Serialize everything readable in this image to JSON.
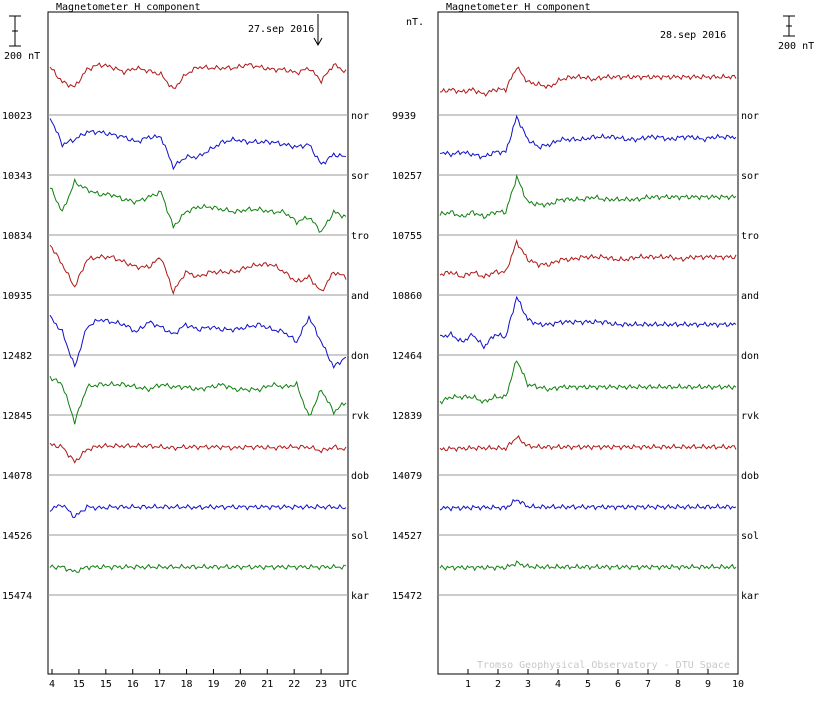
{
  "app": {
    "watermark": "Tromso Geophysical Observatory - DTU Space"
  },
  "scale": {
    "label": "200 nT",
    "unit_label": "nT."
  },
  "panels": [
    {
      "title": "Magnetometer H component",
      "date": "27.sep 2016",
      "marker_label": "",
      "x_ticks": [
        "4",
        "15",
        "15",
        "16",
        "17",
        "18",
        "19",
        "20",
        "21",
        "22",
        "23",
        "UTC"
      ],
      "baselines": [
        "10023",
        "10343",
        "10834",
        "10935",
        "12482",
        "12845",
        "14078",
        "14526",
        "15474"
      ]
    },
    {
      "title": "Magnetometer H component",
      "date": "28.sep 2016",
      "x_ticks": [
        "1",
        "2",
        "3",
        "4",
        "5",
        "6",
        "7",
        "8",
        "9",
        "10"
      ],
      "baselines": [
        "9939",
        "10257",
        "10755",
        "10860",
        "12464",
        "12839",
        "14079",
        "14527",
        "15472"
      ]
    }
  ],
  "chart_data": {
    "type": "line",
    "title": "Magnetometer H component",
    "ylabel": "nT.",
    "stations": [
      "nor",
      "sor",
      "tro",
      "and",
      "don",
      "rvk",
      "dob",
      "sol",
      "kar"
    ],
    "colors": {
      "red": "#b01818",
      "blue": "#1010c8",
      "green": "#108010"
    },
    "station_colors": [
      "red",
      "blue",
      "green",
      "red",
      "blue",
      "green",
      "red",
      "blue",
      "green"
    ],
    "series_27sep": [
      {
        "name": "nor",
        "values": [
          40,
          10,
          0,
          35,
          45,
          40,
          30,
          38,
          32,
          25,
          -5,
          25,
          40,
          38,
          38,
          38,
          45,
          40,
          35,
          35,
          28,
          38,
          12,
          45,
          30
        ]
      },
      {
        "name": "sor",
        "values": [
          60,
          5,
          15,
          30,
          30,
          25,
          20,
          10,
          20,
          20,
          -40,
          -20,
          -20,
          -5,
          10,
          15,
          10,
          10,
          10,
          5,
          0,
          5,
          -35,
          -15,
          -20
        ]
      },
      {
        "name": "tro",
        "values": [
          40,
          -10,
          50,
          35,
          25,
          25,
          15,
          10,
          20,
          30,
          -40,
          -10,
          0,
          0,
          -5,
          -10,
          -5,
          -5,
          -10,
          -10,
          -30,
          -20,
          -50,
          -10,
          -20
        ]
      },
      {
        "name": "and",
        "values": [
          45,
          5,
          -40,
          15,
          20,
          20,
          10,
          0,
          0,
          20,
          -50,
          -10,
          -20,
          -10,
          -10,
          -10,
          0,
          5,
          5,
          -10,
          -30,
          -20,
          -50,
          -10,
          -20
        ]
      },
      {
        "name": "don",
        "values": [
          20,
          -10,
          -80,
          0,
          15,
          10,
          5,
          -10,
          10,
          0,
          -15,
          5,
          -5,
          0,
          -5,
          -5,
          0,
          5,
          -5,
          -10,
          -30,
          20,
          -30,
          -80,
          -60
        ]
      },
      {
        "name": "rvk",
        "values": [
          20,
          5,
          -70,
          0,
          5,
          5,
          5,
          0,
          -5,
          5,
          0,
          0,
          -5,
          0,
          5,
          -5,
          -5,
          -5,
          5,
          0,
          5,
          -60,
          -5,
          -50,
          -30
        ]
      },
      {
        "name": "dob",
        "values": [
          5,
          0,
          -30,
          -5,
          2,
          2,
          2,
          2,
          2,
          0,
          -2,
          0,
          0,
          0,
          0,
          -2,
          0,
          0,
          -2,
          0,
          0,
          0,
          -8,
          0,
          -5
        ]
      },
      {
        "name": "sol",
        "values": [
          -5,
          5,
          -20,
          0,
          -2,
          0,
          0,
          0,
          0,
          0,
          0,
          0,
          -1,
          0,
          0,
          0,
          0,
          0,
          0,
          0,
          0,
          0,
          0,
          0,
          -2
        ]
      },
      {
        "name": "kar",
        "values": [
          0,
          0,
          -10,
          0,
          0,
          0,
          0,
          0,
          0,
          0,
          0,
          0,
          0,
          0,
          0,
          0,
          0,
          0,
          0,
          0,
          0,
          0,
          0,
          0,
          0
        ]
      }
    ],
    "series_28sep": [
      {
        "name": "nor",
        "values": [
          -10,
          -5,
          -10,
          -5,
          -15,
          -5,
          -5,
          40,
          10,
          5,
          0,
          15,
          20,
          20,
          15,
          20,
          20,
          20,
          20,
          20,
          20,
          20,
          20,
          20,
          20,
          20,
          20,
          20
        ]
      },
      {
        "name": "sor",
        "values": [
          -10,
          -15,
          -10,
          -15,
          -20,
          -10,
          -10,
          60,
          15,
          0,
          5,
          15,
          15,
          15,
          20,
          20,
          20,
          15,
          15,
          20,
          20,
          15,
          20,
          20,
          15,
          20,
          20,
          20
        ]
      },
      {
        "name": "tro",
        "values": [
          -15,
          -10,
          -20,
          -10,
          -20,
          -10,
          -10,
          60,
          10,
          5,
          5,
          15,
          15,
          15,
          20,
          15,
          15,
          15,
          15,
          20,
          20,
          20,
          20,
          20,
          20,
          20,
          20,
          20
        ]
      },
      {
        "name": "and",
        "values": [
          -15,
          -10,
          -20,
          -10,
          -20,
          -10,
          -10,
          50,
          15,
          5,
          5,
          15,
          15,
          20,
          20,
          20,
          15,
          15,
          20,
          20,
          20,
          20,
          15,
          20,
          20,
          20,
          20,
          20
        ]
      },
      {
        "name": "don",
        "values": [
          -20,
          -15,
          -30,
          -15,
          -40,
          -15,
          -20,
          60,
          15,
          5,
          5,
          10,
          10,
          10,
          10,
          10,
          5,
          5,
          5,
          5,
          5,
          5,
          5,
          5,
          5,
          5,
          5,
          5
        ]
      },
      {
        "name": "rvk",
        "values": [
          -30,
          -20,
          -20,
          -20,
          -30,
          -20,
          -20,
          55,
          5,
          0,
          -5,
          0,
          0,
          0,
          0,
          0,
          0,
          0,
          0,
          0,
          0,
          0,
          0,
          0,
          0,
          0,
          0,
          0
        ]
      },
      {
        "name": "dob",
        "values": [
          -5,
          -3,
          -3,
          -2,
          -2,
          -2,
          -3,
          20,
          2,
          0,
          0,
          0,
          0,
          0,
          0,
          0,
          0,
          0,
          0,
          0,
          0,
          0,
          0,
          0,
          0,
          0,
          0,
          0
        ]
      },
      {
        "name": "sol",
        "values": [
          -2,
          -2,
          -2,
          -1,
          -1,
          -1,
          -2,
          15,
          1,
          0,
          0,
          0,
          0,
          0,
          0,
          0,
          0,
          0,
          0,
          0,
          0,
          0,
          0,
          0,
          0,
          0,
          0,
          0
        ]
      },
      {
        "name": "kar",
        "values": [
          -1,
          -1,
          -1,
          -1,
          -1,
          -1,
          -1,
          8,
          1,
          0,
          0,
          0,
          0,
          0,
          0,
          0,
          0,
          0,
          0,
          0,
          0,
          0,
          0,
          0,
          0,
          0,
          0,
          0
        ]
      }
    ]
  }
}
